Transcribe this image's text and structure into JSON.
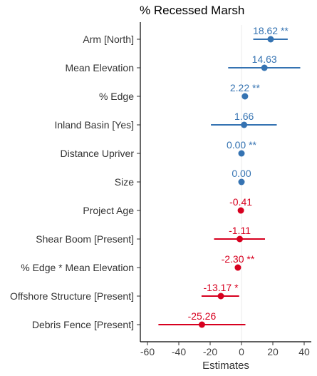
{
  "chart_data": {
    "type": "scatter",
    "subtype": "coefficient-plot",
    "title": "% Recessed Marsh",
    "xlabel": "Estimates",
    "ylabel": "",
    "xlim": [
      -60,
      40
    ],
    "xticks": [
      -60,
      -40,
      -20,
      0,
      20,
      40
    ],
    "grid": false,
    "zero_reference_line": true,
    "colors": {
      "positive": "#3573b2",
      "negative": "#d7001f"
    },
    "terms": [
      {
        "label": "Arm [North]",
        "estimate": 18.62,
        "ci_low": 7.5,
        "ci_high": 29.5,
        "estimate_label": "18.62 **"
      },
      {
        "label": "Mean Elevation",
        "estimate": 14.63,
        "ci_low": -8.5,
        "ci_high": 37.5,
        "estimate_label": "14.63"
      },
      {
        "label": "% Edge",
        "estimate": 2.22,
        "ci_low": 1.0,
        "ci_high": 3.4,
        "estimate_label": "2.22 **"
      },
      {
        "label": "Inland Basin [Yes]",
        "estimate": 1.66,
        "ci_low": -19.5,
        "ci_high": 22.5,
        "estimate_label": "1.66"
      },
      {
        "label": "Distance Upriver",
        "estimate": 0.0,
        "ci_low": -0.4,
        "ci_high": 0.4,
        "estimate_label": "0.00 **"
      },
      {
        "label": "Size",
        "estimate": 0.0,
        "ci_low": -0.4,
        "ci_high": 0.4,
        "estimate_label": "0.00"
      },
      {
        "label": "Project Age",
        "estimate": -0.41,
        "ci_low": -1.2,
        "ci_high": 0.4,
        "estimate_label": "-0.41"
      },
      {
        "label": "Shear Boom [Present]",
        "estimate": -1.11,
        "ci_low": -17.5,
        "ci_high": 15.0,
        "estimate_label": "-1.11"
      },
      {
        "label": "% Edge * Mean Elevation",
        "estimate": -2.3,
        "ci_low": -3.6,
        "ci_high": -1.0,
        "estimate_label": "-2.30 **"
      },
      {
        "label": "Offshore Structure [Present]",
        "estimate": -13.17,
        "ci_low": -25.5,
        "ci_high": -1.5,
        "estimate_label": "-13.17 *"
      },
      {
        "label": "Debris Fence [Present]",
        "estimate": -25.26,
        "ci_low": -53.0,
        "ci_high": 2.5,
        "estimate_label": "-25.26"
      }
    ]
  }
}
